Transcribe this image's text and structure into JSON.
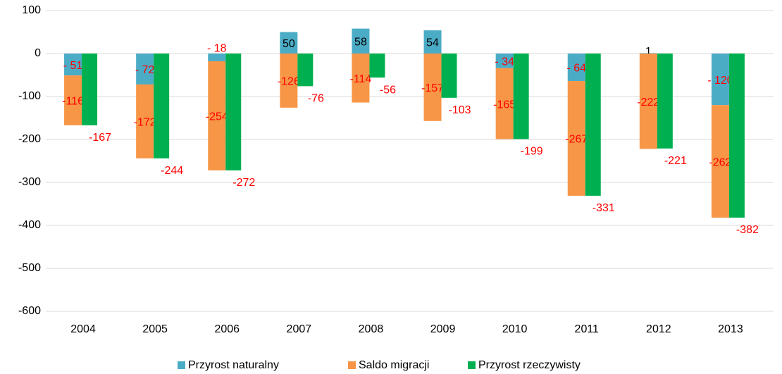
{
  "chart_data": {
    "type": "bar",
    "categories": [
      "2004",
      "2005",
      "2006",
      "2007",
      "2008",
      "2009",
      "2010",
      "2011",
      "2012",
      "2013"
    ],
    "series": [
      {
        "name": "Przyrost naturalny",
        "color": "#4bacc6",
        "stack": 0,
        "values": [
          -51,
          -72,
          -18,
          50,
          58,
          54,
          -34,
          -64,
          1,
          -120
        ],
        "value_labels": [
          "- 51",
          "- 72",
          "- 18",
          "50",
          "58",
          "54",
          "- 34",
          "- 64",
          "1",
          "- 120"
        ]
      },
      {
        "name": "Saldo migracji",
        "color": "#f79646",
        "stack": 0,
        "values": [
          -116,
          -172,
          -254,
          -126,
          -114,
          -157,
          -165,
          -267,
          -222,
          -262
        ]
      },
      {
        "name": "Przyrost rzeczywisty",
        "color": "#00b050",
        "stack": 1,
        "values": [
          -167,
          -244,
          -272,
          -76,
          -56,
          -103,
          -199,
          -331,
          -221,
          -382
        ]
      }
    ],
    "ylim": [
      -600,
      100
    ],
    "yticks": [
      -600,
      -500,
      -400,
      -300,
      -200,
      -100,
      0,
      100
    ],
    "grid": true,
    "legend": "bottom"
  }
}
